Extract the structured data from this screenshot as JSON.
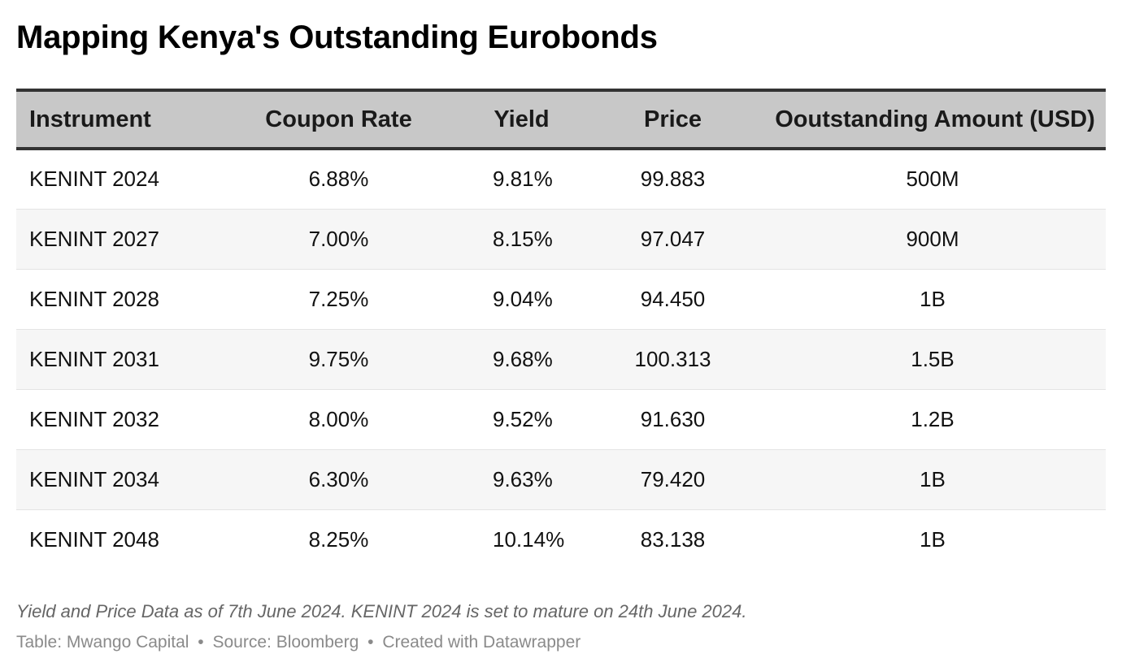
{
  "chart_data": {
    "type": "table",
    "title": "Mapping Kenya's Outstanding Eurobonds",
    "columns": [
      "Instrument",
      "Coupon Rate",
      "Yield",
      "Price",
      "Ooutstanding Amount (USD)"
    ],
    "rows": [
      [
        "KENINT 2024",
        "6.88%",
        "9.81%",
        "99.883",
        "500M"
      ],
      [
        "KENINT 2027",
        "7.00%",
        "8.15%",
        "97.047",
        "900M"
      ],
      [
        "KENINT 2028",
        "7.25%",
        "9.04%",
        "94.450",
        "1B"
      ],
      [
        "KENINT 2031",
        "9.75%",
        "9.68%",
        "100.313",
        "1.5B"
      ],
      [
        "KENINT 2032",
        "8.00%",
        "9.52%",
        "91.630",
        "1.2B"
      ],
      [
        "KENINT 2034",
        "6.30%",
        "9.63%",
        "79.420",
        "1B"
      ],
      [
        "KENINT 2048",
        "8.25%",
        "10.14%",
        "83.138",
        "1B"
      ]
    ],
    "note": "Yield and Price Data as of 7th June 2024. KENINT 2024 is set to mature on 24th June 2024.",
    "byline": {
      "table": "Table: Mwango Capital",
      "source": "Source: Bloomberg",
      "created": "Created with Datawrapper",
      "separator": "•"
    }
  }
}
